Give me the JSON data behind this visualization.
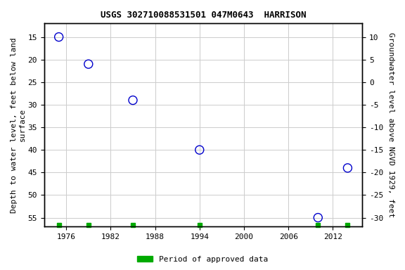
{
  "title": "USGS 302710088531501 047M0643  HARRISON",
  "x_data": [
    1975,
    1979,
    1985,
    1994,
    2010,
    2014
  ],
  "y_data": [
    15,
    21,
    29,
    40,
    55,
    44
  ],
  "point_color": "#0000cc",
  "xlim": [
    1973,
    2016
  ],
  "ylim_bottom": 57,
  "ylim_top": 12,
  "left_ylabel": "Depth to water level, feet below land\nsurface",
  "right_ylabel": "Groundwater level above NGVD 1929, feet",
  "left_yticks": [
    15,
    20,
    25,
    30,
    35,
    40,
    45,
    50,
    55
  ],
  "right_yticks_labels": [
    "10",
    "5",
    "0",
    "-5",
    "-10",
    "-15",
    "-20",
    "-25",
    "-30"
  ],
  "right_ytick_positions": [
    15,
    20,
    25,
    30,
    35,
    40,
    45,
    50,
    55
  ],
  "xticks": [
    1976,
    1982,
    1988,
    1994,
    2000,
    2006,
    2012
  ],
  "legend_label": "Period of approved data",
  "legend_color": "#00aa00",
  "grid_color": "#cccccc",
  "bg_color": "#ffffff",
  "approved_x": [
    1975,
    1979,
    1985,
    1994,
    2010,
    2014
  ],
  "marker_size": 5,
  "approved_marker_size": 5
}
